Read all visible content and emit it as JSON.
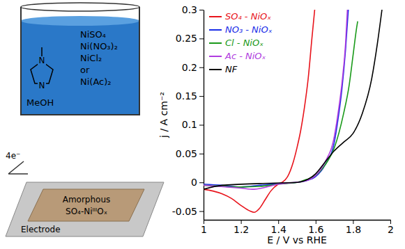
{
  "chart_data": {
    "type": "line",
    "x_label": "E / V vs RHE",
    "y_label": "j / A cm⁻²",
    "xlim": [
      1,
      2
    ],
    "xticks": [
      1,
      1.2,
      1.4,
      1.6,
      1.8,
      2
    ],
    "ylim": [
      -0.065,
      0.3
    ],
    "yticks": [
      -0.05,
      0,
      0.05,
      0.1,
      0.15,
      0.2,
      0.25,
      0.3
    ],
    "legend": "upper left",
    "series": [
      {
        "name": "SO₄ - NiOₓ",
        "color": "#e8141c",
        "x": [
          1.0,
          1.05,
          1.1,
          1.15,
          1.2,
          1.25,
          1.27,
          1.3,
          1.33,
          1.36,
          1.4,
          1.42,
          1.45,
          1.48,
          1.5,
          1.52,
          1.54,
          1.56,
          1.58,
          1.595
        ],
        "values": [
          -0.012,
          -0.015,
          -0.02,
          -0.028,
          -0.04,
          -0.05,
          -0.052,
          -0.045,
          -0.03,
          -0.015,
          -0.003,
          0.0,
          0.01,
          0.035,
          0.06,
          0.09,
          0.13,
          0.18,
          0.25,
          0.3
        ]
      },
      {
        "name": "NO₃ - NiOₓ",
        "color": "#1a2ee8",
        "x": [
          1.0,
          1.1,
          1.2,
          1.3,
          1.4,
          1.5,
          1.55,
          1.6,
          1.65,
          1.7,
          1.72,
          1.74,
          1.76,
          1.775
        ],
        "values": [
          -0.003,
          -0.005,
          -0.008,
          -0.005,
          -0.002,
          0.0,
          0.003,
          0.01,
          0.03,
          0.07,
          0.11,
          0.16,
          0.23,
          0.3
        ]
      },
      {
        "name": "Cl - NiOₓ",
        "color": "#1a9a1a",
        "x": [
          1.0,
          1.2,
          1.3,
          1.4,
          1.5,
          1.55,
          1.6,
          1.65,
          1.7,
          1.75,
          1.78,
          1.8,
          1.82,
          1.825
        ],
        "values": [
          -0.005,
          -0.008,
          -0.007,
          -0.003,
          0.0,
          0.005,
          0.012,
          0.03,
          0.06,
          0.12,
          0.17,
          0.22,
          0.27,
          0.28
        ]
      },
      {
        "name": "Ac - NiOₓ",
        "color": "#b03ce0",
        "x": [
          1.0,
          1.2,
          1.27,
          1.4,
          1.55,
          1.6,
          1.65,
          1.7,
          1.72,
          1.74,
          1.76,
          1.77
        ],
        "values": [
          -0.005,
          -0.01,
          -0.012,
          -0.003,
          0.003,
          0.012,
          0.035,
          0.08,
          0.12,
          0.17,
          0.24,
          0.3
        ]
      },
      {
        "name": "NF",
        "color": "#000000",
        "x": [
          1.0,
          1.1,
          1.3,
          1.5,
          1.6,
          1.65,
          1.7,
          1.75,
          1.8,
          1.85,
          1.9,
          1.93,
          1.955
        ],
        "values": [
          -0.012,
          -0.005,
          -0.002,
          0.0,
          0.015,
          0.035,
          0.055,
          0.07,
          0.085,
          0.12,
          0.18,
          0.24,
          0.3
        ]
      }
    ],
    "annotations": {
      "salts": [
        "NiSO₄",
        "Ni(NO₃)₂",
        "NiCl₂",
        "or",
        "Ni(Ac)₂"
      ],
      "atoms": [
        "N",
        "N"
      ],
      "solvent": "MeOH",
      "electrons": "4e⁻",
      "film": [
        "Amorphous",
        "SO₄-NiᴵᴵᴵOₓ"
      ],
      "substrate": "Electrode"
    }
  }
}
